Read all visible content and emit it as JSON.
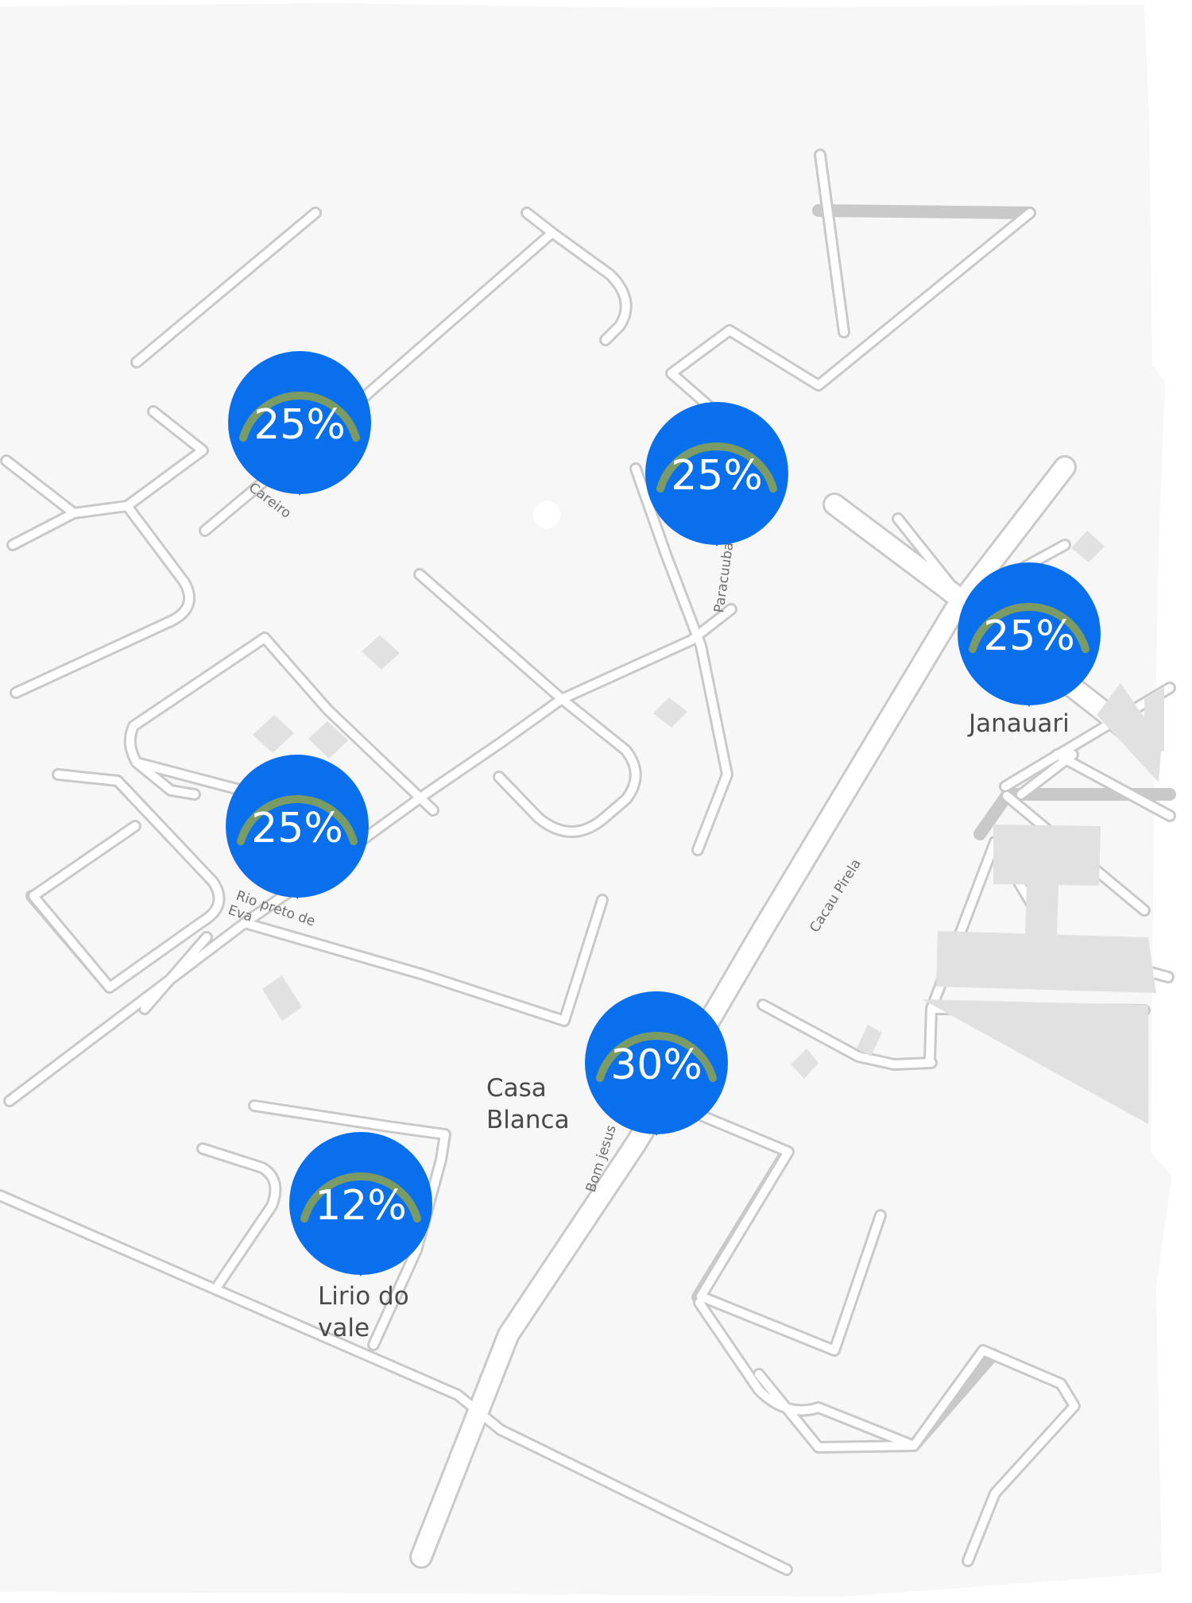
{
  "map": {
    "colors": {
      "land": "#f7f7f7",
      "road_fill": "#ffffff",
      "road_edge": "#c9c9c9",
      "block": "#e1e1e1",
      "pin": "#0a6fec",
      "arc": "#7a9b64"
    },
    "markers": [
      {
        "id": "careiro",
        "percent": "25%",
        "level": 0.25
      },
      {
        "id": "paracuuba",
        "percent": "25%",
        "level": 0.25
      },
      {
        "id": "janauari",
        "percent": "25%",
        "level": 0.25
      },
      {
        "id": "rio-preto",
        "percent": "25%",
        "level": 0.25
      },
      {
        "id": "casa-blanca",
        "percent": "30%",
        "level": 0.3
      },
      {
        "id": "lirio",
        "percent": "12%",
        "level": 0.12
      }
    ],
    "street_labels": {
      "careiro": "Careiro",
      "paracuuba": "Paracuuba",
      "cacau_pirela": "Cacau Pirela",
      "rio_preto_line1": "Rio preto de",
      "rio_preto_line2": "Eva",
      "bom_jesus": "Bom jesus"
    },
    "place_labels": {
      "janauari": "Janauari",
      "casa_blanca_line1": "Casa",
      "casa_blanca_line2": "Blanca",
      "lirio_line1": "Lirio do",
      "lirio_line2": "vale"
    }
  }
}
